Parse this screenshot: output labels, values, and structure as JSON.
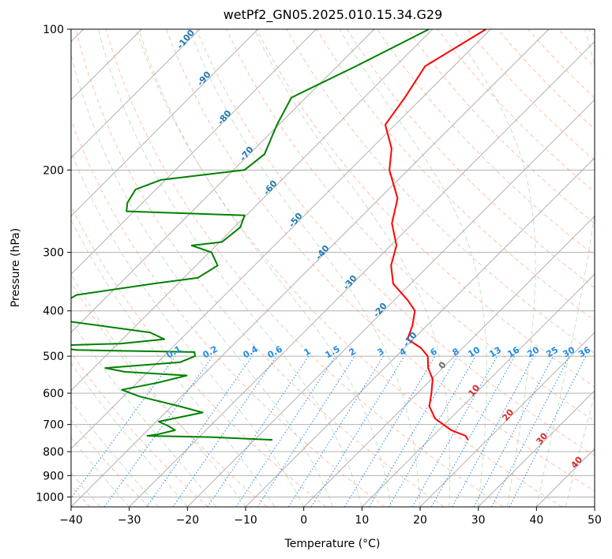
{
  "chart_data": {
    "type": "line",
    "title": "wetPf2_GN05.2025.010.15.34.G29",
    "xlabel": "Temperature (°C)",
    "ylabel": "Pressure (hPa)",
    "xlim": [
      -40,
      50
    ],
    "ylim": [
      1050,
      100
    ],
    "y_scale": "log",
    "grid": true,
    "x_ticks": [
      "−40",
      "−30",
      "−20",
      "−10",
      "0",
      "10",
      "20",
      "30",
      "40",
      "50"
    ],
    "y_ticks": [
      "100",
      "200",
      "300",
      "400",
      "500",
      "600",
      "700",
      "800",
      "900",
      "1000"
    ],
    "series": [
      {
        "role": "temperature",
        "color": "#ff0000",
        "points": [
          [
            -50.8,
            100
          ],
          [
            -54.9,
            120
          ],
          [
            -53.0,
            140
          ],
          [
            -51.7,
            160
          ],
          [
            -46.5,
            180
          ],
          [
            -43.2,
            200
          ],
          [
            -36.9,
            230
          ],
          [
            -33.6,
            260
          ],
          [
            -29.0,
            290
          ],
          [
            -26.5,
            320
          ],
          [
            -23.0,
            350
          ],
          [
            -17.6,
            380
          ],
          [
            -14.6,
            400
          ],
          [
            -12.5,
            430
          ],
          [
            -11.0,
            460
          ],
          [
            -7.2,
            480
          ],
          [
            -4.6,
            500
          ],
          [
            -2.5,
            530
          ],
          [
            0.2,
            560
          ],
          [
            2.4,
            600
          ],
          [
            4.3,
            640
          ],
          [
            7.4,
            680
          ],
          [
            12.2,
            720
          ],
          [
            15.6,
            740
          ],
          [
            16.7,
            755
          ]
        ]
      },
      {
        "role": "dewpoint",
        "color": "#008000",
        "points": [
          [
            -60.6,
            100
          ],
          [
            -66.8,
            120
          ],
          [
            -72.5,
            140
          ],
          [
            -70.3,
            160
          ],
          [
            -67.4,
            185
          ],
          [
            -68.1,
            200
          ],
          [
            -80.8,
            210
          ],
          [
            -83.5,
            220
          ],
          [
            -82.6,
            235
          ],
          [
            -81.3,
            245
          ],
          [
            -60.3,
            250
          ],
          [
            -59.0,
            265
          ],
          [
            -59.6,
            285
          ],
          [
            -64.2,
            290
          ],
          [
            -59.6,
            300
          ],
          [
            -56.3,
            320
          ],
          [
            -57.6,
            340
          ],
          [
            -64.2,
            350
          ],
          [
            -75.5,
            370
          ],
          [
            -76.8,
            390
          ],
          [
            -75.2,
            405
          ],
          [
            -73.3,
            420
          ],
          [
            -56.4,
            445
          ],
          [
            -52.8,
            460
          ],
          [
            -59.6,
            470
          ],
          [
            -72.3,
            475
          ],
          [
            -66.0,
            485
          ],
          [
            -45.4,
            490
          ],
          [
            -44.6,
            500
          ],
          [
            -46.1,
            515
          ],
          [
            -58.0,
            530
          ],
          [
            -54.0,
            540
          ],
          [
            -42.7,
            550
          ],
          [
            -46.5,
            570
          ],
          [
            -51.4,
            590
          ],
          [
            -47.1,
            610
          ],
          [
            -38.6,
            640
          ],
          [
            -33.6,
            660
          ],
          [
            -39.6,
            690
          ],
          [
            -37.2,
            705
          ],
          [
            -35.3,
            720
          ],
          [
            -37.6,
            735
          ],
          [
            -39.1,
            740
          ],
          [
            -27.6,
            745
          ],
          [
            -16.9,
            755
          ]
        ]
      }
    ],
    "dry_adiabat_labels": [
      "-100",
      "-90",
      "-80",
      "-70",
      "-60",
      "-50",
      "-40",
      "-30",
      "-20",
      "-10",
      "0",
      "10",
      "20",
      "30",
      "40"
    ],
    "mixing_ratio_labels": [
      "0.1",
      "0.2",
      "0.4",
      "0.6",
      "1",
      "1.5",
      "2",
      "3",
      "4",
      "6",
      "8",
      "10",
      "13",
      "16",
      "20",
      "25",
      "30",
      "36"
    ],
    "colors": {
      "temperature": "#ff0000",
      "dewpoint": "#008000",
      "isotherm_grid": "#b0b0b0",
      "dry_adiabat": "#ff8c69",
      "moist_adiabat": "#7fbf7f",
      "mixing_ratio": "#1f8ae6",
      "dry_adiabat_label_cold": "#1f77b4",
      "dry_adiabat_label_warm": "#d62728"
    }
  }
}
